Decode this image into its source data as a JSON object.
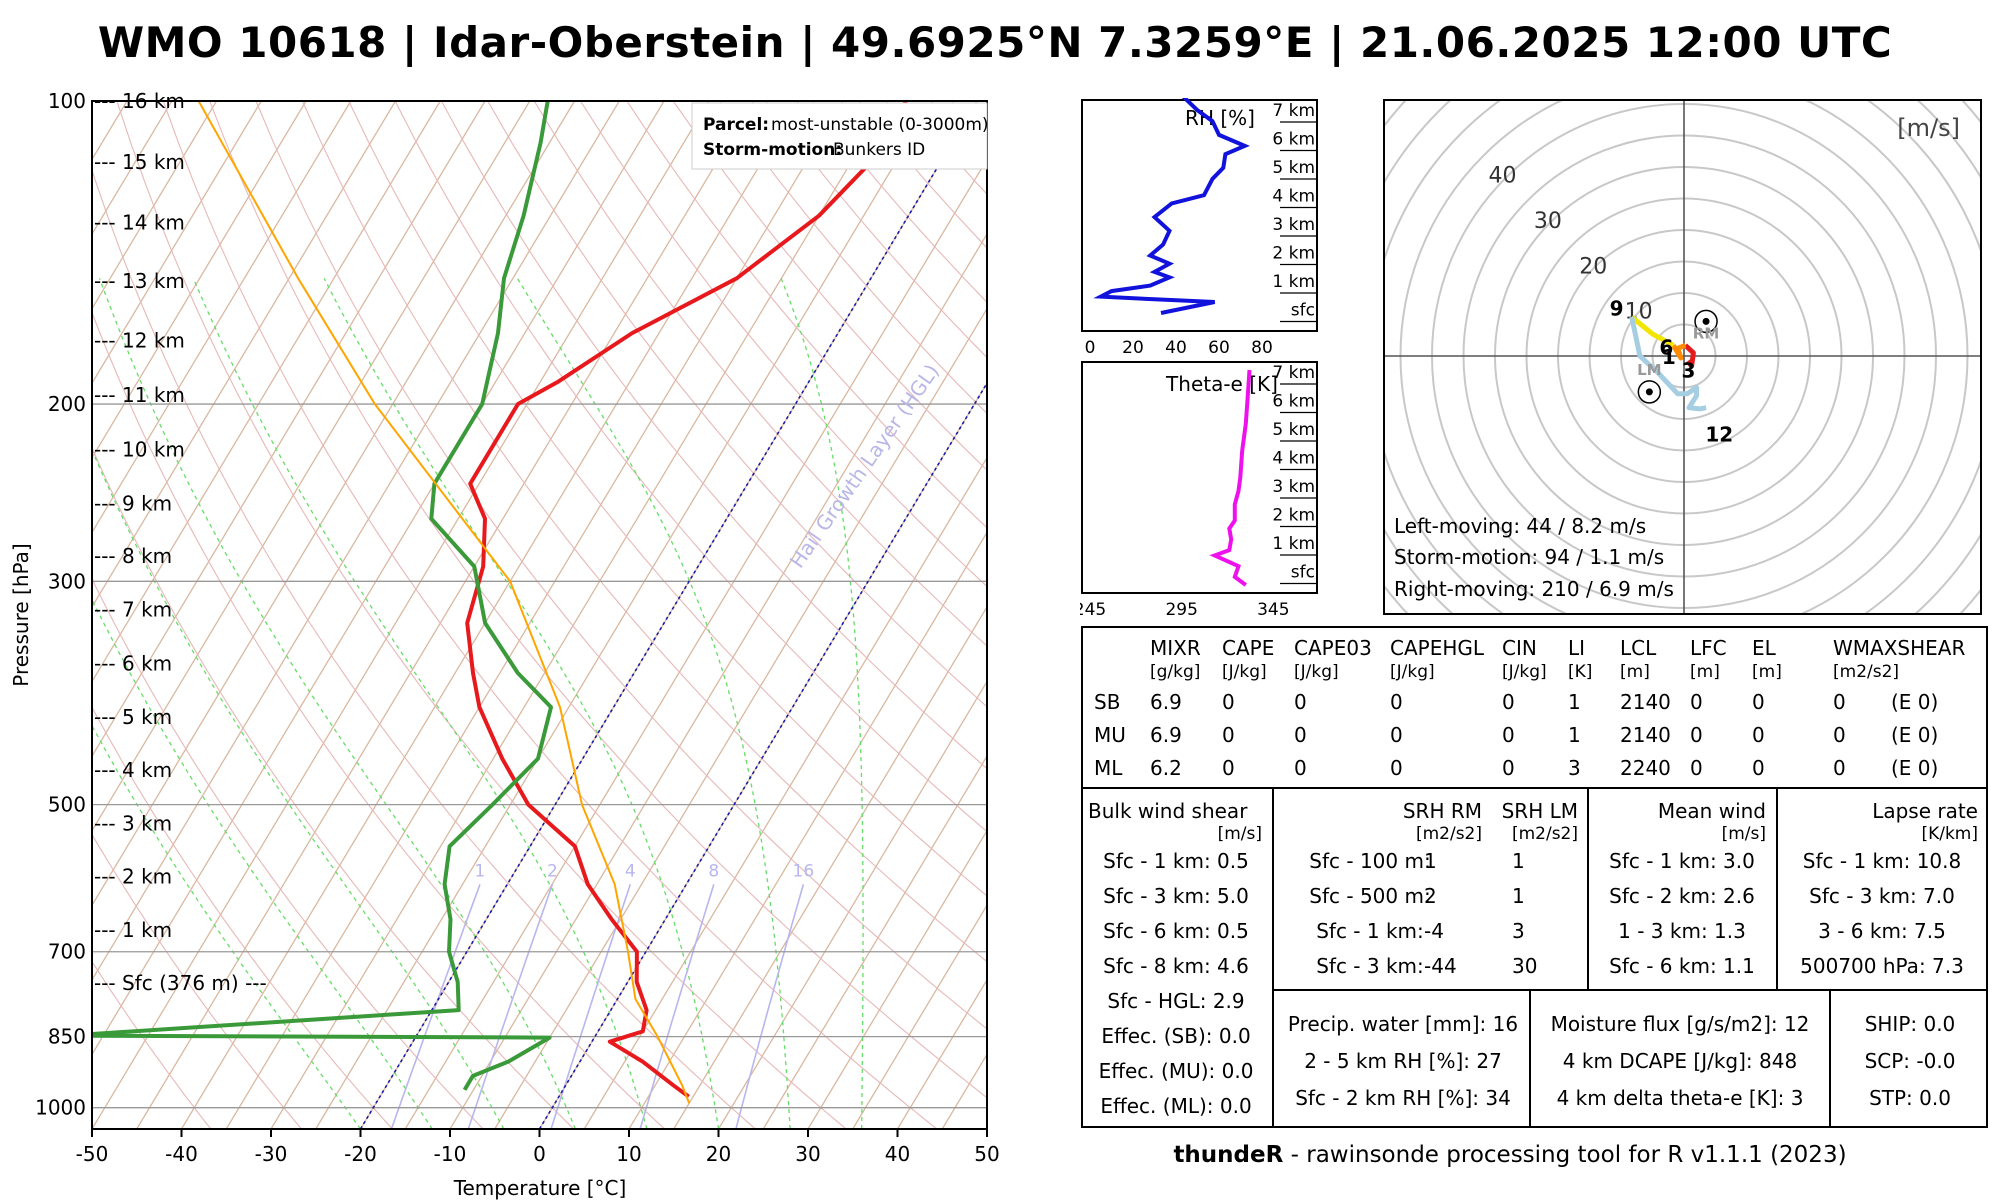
{
  "title": "WMO 10618 | Idar-Oberstein | 49.6925°N 7.3259°E | 21.06.2025 12:00 UTC",
  "skewt": {
    "xlabel": "Temperature [°C]",
    "ylabel": "Pressure [hPa]",
    "x_ticks": [
      "-50",
      "-40",
      "-30",
      "-20",
      "-10",
      "0",
      "10",
      "20",
      "30",
      "40",
      "50"
    ],
    "p_ticks": [
      {
        "p": 100,
        "label": "100"
      },
      {
        "p": 200,
        "label": "200"
      },
      {
        "p": 300,
        "label": "300"
      },
      {
        "p": 500,
        "label": "500"
      },
      {
        "p": 700,
        "label": "700"
      },
      {
        "p": 850,
        "label": "850"
      },
      {
        "p": 1000,
        "label": "1000"
      }
    ],
    "heights": [
      {
        "p": 100,
        "label": "--- 16 km"
      },
      {
        "p": 115,
        "label": "--- 15 km"
      },
      {
        "p": 132,
        "label": "--- 14 km"
      },
      {
        "p": 151,
        "label": "--- 13 km"
      },
      {
        "p": 173,
        "label": "--- 12 km"
      },
      {
        "p": 196,
        "label": "--- 11 km"
      },
      {
        "p": 222,
        "label": "--- 10 km"
      },
      {
        "p": 251,
        "label": "--- 9 km"
      },
      {
        "p": 283,
        "label": "--- 8 km"
      },
      {
        "p": 320,
        "label": "--- 7 km"
      },
      {
        "p": 362,
        "label": "--- 6 km"
      },
      {
        "p": 409,
        "label": "--- 5 km"
      },
      {
        "p": 462,
        "label": "--- 4 km"
      },
      {
        "p": 522,
        "label": "--- 3 km"
      },
      {
        "p": 589,
        "label": "--- 2 km"
      },
      {
        "p": 666,
        "label": "--- 1 km"
      },
      {
        "p": 752,
        "label": "--- Sfc (376 m) ---"
      }
    ],
    "legend": {
      "parcel_label": "Parcel:",
      "parcel_value": "most-unstable (0-3000m)",
      "storm_label": "Storm-motion:",
      "storm_value": "Bunkers ID"
    },
    "hgl_label": "Hail Growth Layer (HGL)",
    "mixing_ratio_labels": [
      "1",
      "2",
      "4",
      "8",
      "16"
    ]
  },
  "chart_data": [
    {
      "type": "line",
      "title": "Skew-T log-p",
      "xlabel": "Temperature [°C]",
      "ylabel": "Pressure [hPa]",
      "xlim": [
        -50,
        50
      ],
      "ylim": [
        1050,
        100
      ],
      "series": [
        {
          "name": "Temperature",
          "color": "#e8191c",
          "points": [
            [
              100,
              -28
            ],
            [
              110,
              -27
            ],
            [
              130,
              -30
            ],
            [
              150,
              -35
            ],
            [
              170,
              -43
            ],
            [
              190,
              -48
            ],
            [
              200,
              -51
            ],
            [
              240,
              -51
            ],
            [
              260,
              -47
            ],
            [
              290,
              -44
            ],
            [
              330,
              -42
            ],
            [
              370,
              -38
            ],
            [
              400,
              -35
            ],
            [
              450,
              -29
            ],
            [
              500,
              -23
            ],
            [
              550,
              -15
            ],
            [
              600,
              -11
            ],
            [
              650,
              -6
            ],
            [
              700,
              -1
            ],
            [
              750,
              1
            ],
            [
              800,
              4
            ],
            [
              840,
              5
            ],
            [
              860,
              2
            ],
            [
              900,
              7
            ],
            [
              950,
              12
            ],
            [
              975,
              14.5
            ]
          ]
        },
        {
          "name": "Dewpoint",
          "color": "#3a9a3a",
          "points": [
            [
              100,
              -68
            ],
            [
              110,
              -66
            ],
            [
              130,
              -63
            ],
            [
              150,
              -61
            ],
            [
              170,
              -58
            ],
            [
              200,
              -55
            ],
            [
              240,
              -55
            ],
            [
              260,
              -53
            ],
            [
              290,
              -45
            ],
            [
              330,
              -40
            ],
            [
              370,
              -33
            ],
            [
              400,
              -27
            ],
            [
              450,
              -25
            ],
            [
              500,
              -27
            ],
            [
              550,
              -29
            ],
            [
              600,
              -27
            ],
            [
              650,
              -24
            ],
            [
              700,
              -22
            ],
            [
              750,
              -19
            ],
            [
              800,
              -17
            ],
            [
              848,
              -59
            ],
            [
              852,
              -5
            ],
            [
              900,
              -8
            ],
            [
              930,
              -11
            ],
            [
              960,
              -11
            ]
          ]
        },
        {
          "name": "Parcel",
          "color": "#ffa500",
          "points": [
            [
              100,
              -107
            ],
            [
              150,
              -84
            ],
            [
              200,
              -67
            ],
            [
              300,
              -40
            ],
            [
              400,
              -26
            ],
            [
              500,
              -17
            ],
            [
              600,
              -8
            ],
            [
              700,
              -2
            ],
            [
              780,
              2
            ],
            [
              850,
              7
            ],
            [
              950,
              13
            ],
            [
              990,
              15
            ]
          ]
        }
      ]
    },
    {
      "type": "line",
      "title": "RH [%]",
      "xlim": [
        0,
        100
      ],
      "x_ticks": [
        "0",
        "20",
        "40",
        "60",
        "80"
      ],
      "y_ticks": [
        "7 km",
        "6 km",
        "5 km",
        "4 km",
        "3 km",
        "2 km",
        "1 km",
        "sfc"
      ],
      "series": [
        {
          "name": "RH",
          "color": "#1212dd",
          "points": [
            [
              0,
              33
            ],
            [
              0.4,
              58
            ],
            [
              0.5,
              30
            ],
            [
              0.6,
              5
            ],
            [
              0.8,
              10
            ],
            [
              1.0,
              28
            ],
            [
              1.3,
              37
            ],
            [
              1.5,
              30
            ],
            [
              1.8,
              37
            ],
            [
              2.1,
              28
            ],
            [
              2.5,
              34
            ],
            [
              3.0,
              37
            ],
            [
              3.5,
              30
            ],
            [
              4.0,
              38
            ],
            [
              4.3,
              53
            ],
            [
              4.9,
              57
            ],
            [
              5.3,
              62
            ],
            [
              5.8,
              63
            ],
            [
              6.1,
              72
            ],
            [
              6.5,
              60
            ],
            [
              7.0,
              57
            ],
            [
              7.4,
              50
            ],
            [
              8.0,
              42
            ]
          ]
        }
      ]
    },
    {
      "type": "line",
      "title": "Theta-e [K]",
      "xlim": [
        245,
        365
      ],
      "x_ticks": [
        "245",
        "295",
        "345"
      ],
      "y_ticks": [
        "7 km",
        "6 km",
        "5 km",
        "4 km",
        "3 km",
        "2 km",
        "1 km",
        "sfc"
      ],
      "series": [
        {
          "name": "Theta-e",
          "color": "#ee11ee",
          "points": [
            [
              0,
              330
            ],
            [
              0.3,
              324
            ],
            [
              0.7,
              326
            ],
            [
              1.1,
              313
            ],
            [
              1.3,
              321
            ],
            [
              1.7,
              322
            ],
            [
              2.1,
              321
            ],
            [
              2.4,
              324
            ],
            [
              3.0,
              324
            ],
            [
              3.5,
              326
            ],
            [
              4.0,
              327
            ],
            [
              5.0,
              328
            ],
            [
              6.0,
              330
            ],
            [
              7.0,
              331
            ],
            [
              8.0,
              332
            ]
          ]
        }
      ]
    },
    {
      "type": "line",
      "title": "Hodograph",
      "unit": "[m/s]",
      "rings": [
        "10",
        "20",
        "30",
        "40"
      ],
      "series": [
        {
          "name": "Hodograph",
          "points": [
            [
              0.6,
              -0.8
            ],
            [
              1.2,
              -1.6
            ],
            [
              1.5,
              0.5
            ],
            [
              0.2,
              1.7
            ],
            [
              -1.0,
              1.2
            ],
            [
              -0.5,
              -0.3
            ],
            [
              -1.7,
              1.7
            ],
            [
              -5,
              3.5
            ],
            [
              -8.3,
              6.2
            ],
            [
              -7,
              0
            ],
            [
              -4,
              -2.8
            ],
            [
              -1,
              -6
            ],
            [
              0.5,
              -6
            ],
            [
              2,
              -5
            ],
            [
              2,
              -6.3
            ],
            [
              0.8,
              -8.2
            ],
            [
              2.5,
              -8.4
            ],
            [
              3.5,
              -8.2
            ]
          ]
        }
      ],
      "height_labels": [
        "9",
        "6",
        "1",
        "3",
        "12"
      ],
      "markers": [
        "RM",
        "LM"
      ]
    }
  ],
  "hodo": {
    "unit": "[m/s]",
    "rings": [
      "10",
      "20",
      "30",
      "40"
    ],
    "labels": {
      "h9": "9",
      "h6": "6",
      "h1": "1",
      "h3": "3",
      "h12": "12",
      "rm": "RM",
      "lm": "LM"
    },
    "info": [
      "Left-moving: 44 / 8.2 m/s",
      "Storm-motion: 94 / 1.1 m/s",
      "Right-moving: 210 / 6.9 m/s"
    ]
  },
  "params": {
    "headers": [
      [
        "MIXR",
        "[g/kg]"
      ],
      [
        "CAPE",
        "[J/kg]"
      ],
      [
        "CAPE03",
        "[J/kg]"
      ],
      [
        "CAPEHGL",
        "[J/kg]"
      ],
      [
        "CIN",
        "[J/kg]"
      ],
      [
        "LI",
        "[K]"
      ],
      [
        "LCL",
        "[m]"
      ],
      [
        "LFC",
        "[m]"
      ],
      [
        "EL",
        "[m]"
      ],
      [
        "WMAXSHEAR",
        "[m2/s2]"
      ]
    ],
    "rows": [
      [
        "SB",
        "6.9",
        "0",
        "0",
        "0",
        "0",
        "1",
        "2140",
        "0",
        "0",
        "0",
        "(E 0)"
      ],
      [
        "MU",
        "6.9",
        "0",
        "0",
        "0",
        "0",
        "1",
        "2140",
        "0",
        "0",
        "0",
        "(E 0)"
      ],
      [
        "ML",
        "6.2",
        "0",
        "0",
        "0",
        "0",
        "3",
        "2240",
        "0",
        "0",
        "0",
        "(E 0)"
      ]
    ]
  },
  "shear": {
    "title": "Bulk wind shear",
    "unit": "[m/s]",
    "rows": [
      "Sfc - 1 km: 0.5",
      "Sfc - 3 km: 5.0",
      "Sfc - 6 km: 0.5",
      "Sfc - 8 km: 4.6",
      "Sfc - HGL: 2.9",
      "Effec. (SB): 0.0",
      "Effec. (MU): 0.0",
      "Effec. (ML): 0.0"
    ]
  },
  "srh": {
    "head1": "SRH RM",
    "head2": "SRH LM",
    "unit1": "[m2/s2]",
    "unit2": "[m2/s2]",
    "rows": [
      [
        "Sfc - 100 m:",
        "1",
        "1"
      ],
      [
        "Sfc - 500 m:",
        "2",
        "1"
      ],
      [
        "Sfc - 1 km:",
        "-4",
        "3"
      ],
      [
        "Sfc - 3 km:",
        "-44",
        "30"
      ]
    ]
  },
  "meanwind": {
    "title": "Mean wind",
    "unit": "[m/s]",
    "rows": [
      "Sfc - 1 km: 3.0",
      "Sfc - 2 km: 2.6",
      "1 - 3 km: 1.3",
      "Sfc - 6 km: 1.1"
    ]
  },
  "lapse": {
    "title": "Lapse rate",
    "unit": "[K/km]",
    "rows": [
      "Sfc - 1 km: 10.8",
      "Sfc - 3 km: 7.0",
      "3 - 6 km: 7.5",
      "500700 hPa: 7.3"
    ]
  },
  "moisture": {
    "rows": [
      "Precip. water [mm]: 16",
      "2 - 5 km RH [%]: 27",
      "Sfc - 2 km RH [%]: 34"
    ]
  },
  "flux": {
    "rows": [
      "Moisture flux [g/s/m2]: 12",
      "4 km DCAPE [J/kg]: 848",
      "4 km delta theta-e [K]: 3"
    ]
  },
  "composite": {
    "rows": [
      "SHIP: 0.0",
      "SCP: -0.0",
      "STP: 0.0"
    ]
  },
  "footer": {
    "bold": "thundeR",
    "rest": " - rawinsonde processing tool for R v1.1.1 (2023)"
  }
}
